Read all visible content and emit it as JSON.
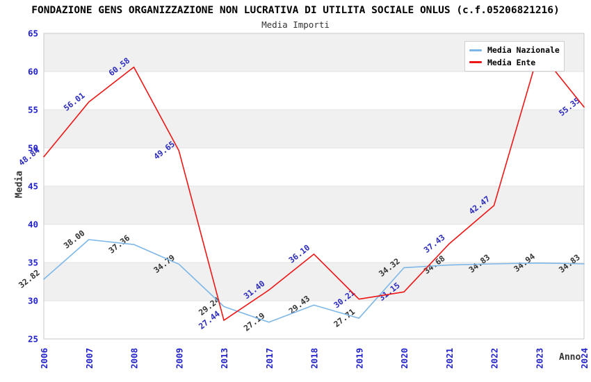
{
  "header": {
    "title": "FONDAZIONE GENS ORGANIZZAZIONE NON LUCRATIVA DI UTILITA SOCIALE ONLUS (c.f.05206821216)",
    "subtitle": "Media Importi"
  },
  "chart_data": {
    "type": "line",
    "title": "FONDAZIONE GENS ORGANIZZAZIONE NON LUCRATIVA DI UTILITA SOCIALE ONLUS (c.f.05206821216)",
    "subtitle": "Media Importi",
    "xlabel": "Anno",
    "ylabel": "Media",
    "categories": [
      "2006",
      "2007",
      "2008",
      "2009",
      "2013",
      "2017",
      "2018",
      "2019",
      "2020",
      "2021",
      "2022",
      "2023",
      "2024"
    ],
    "series": [
      {
        "name": "Media Nazionale",
        "color": "#7db7e8",
        "label_color": "#333333",
        "values": [
          32.82,
          38.0,
          37.36,
          34.79,
          29.24,
          27.19,
          29.43,
          27.71,
          34.32,
          34.68,
          34.83,
          34.94,
          34.83
        ]
      },
      {
        "name": "Media Ente",
        "color": "#ee1515",
        "label_color": "#2b2bbd",
        "values": [
          48.84,
          56.01,
          60.58,
          49.65,
          27.44,
          31.4,
          36.1,
          30.21,
          31.15,
          37.43,
          42.47,
          62.68,
          55.35
        ]
      }
    ],
    "ylim": [
      25,
      65
    ],
    "ytick_step": 5,
    "grid": true,
    "legend_position": "top-right",
    "band_color": "#f0f0f0",
    "grid_color": "#e2e2e2",
    "border_color": "#c8c8c8",
    "tick_color": "#2222cc"
  },
  "legend": {
    "items": [
      {
        "label": "Media Nazionale",
        "color": "#7db7e8"
      },
      {
        "label": "Media Ente",
        "color": "#ee1515"
      }
    ]
  }
}
